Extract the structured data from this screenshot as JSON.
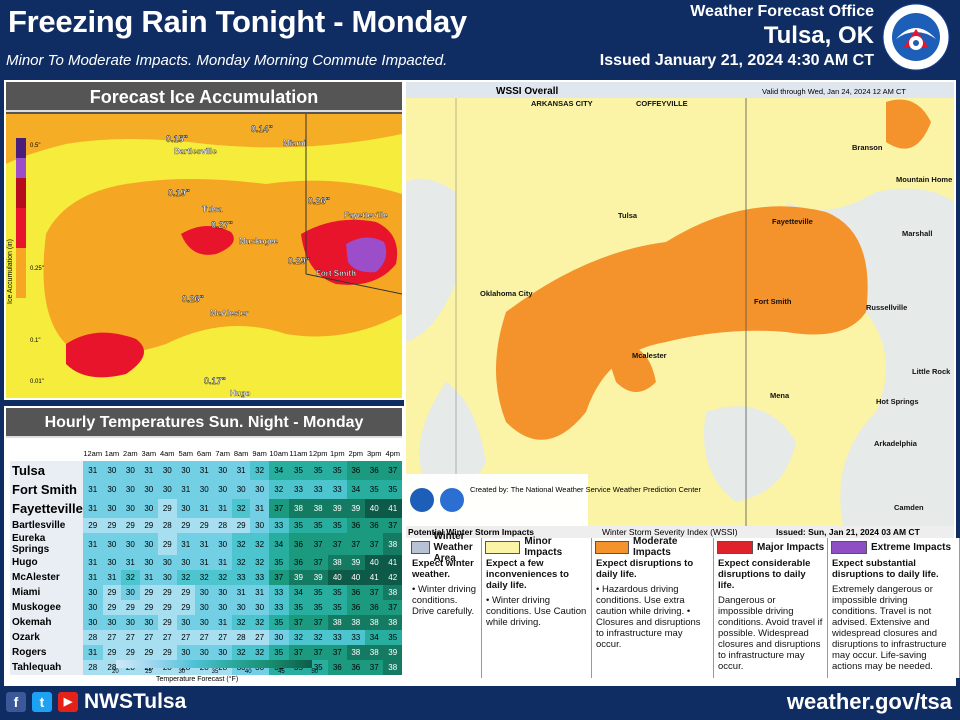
{
  "header": {
    "title": "Freezing Rain Tonight - Monday",
    "subtitle": "Minor To Moderate Impacts. Monday Morning Commute Impacted.",
    "office": "Weather Forecast Office",
    "city": "Tulsa, OK",
    "issued": "Issued January 21, 2024 4:30 AM CT",
    "logo_text": "NATIONAL WEATHER SERVICE"
  },
  "ice_map": {
    "title": "Forecast Ice Accumulation",
    "scale_label": "Ice Accumulation (in)",
    "scale_ticks": [
      "0.5\"",
      "0.25\"",
      "0.1\"",
      "0.01\""
    ],
    "cities": [
      "Bartlesville",
      "Miami",
      "Tulsa",
      "Muskogee",
      "Fayetteville",
      "Fort Smith",
      "McAlester",
      "Hugo"
    ],
    "values": [
      "0.15\"",
      "0.14\"",
      "0.19\"",
      "0.27\"",
      "0.26\"",
      "0.29\"",
      "0.26\"",
      "0.17\""
    ],
    "highways": [
      "44",
      "35",
      "40",
      "35"
    ],
    "colors": {
      "yellow": "#f6ec3c",
      "orange": "#f5a623",
      "red": "#e8142c",
      "purple": "#9b4dca"
    }
  },
  "temps": {
    "title": "Hourly Temperatures Sun. Night - Monday",
    "hours": [
      "12am",
      "1am",
      "2am",
      "3am",
      "4am",
      "5am",
      "6am",
      "7am",
      "8am",
      "9am",
      "10am",
      "11am",
      "12pm",
      "1pm",
      "2pm",
      "3pm",
      "4pm"
    ],
    "rows": [
      {
        "city": "Tulsa",
        "big": true,
        "vals": [
          31,
          30,
          30,
          31,
          30,
          30,
          31,
          30,
          31,
          32,
          34,
          35,
          35,
          35,
          36,
          36,
          37
        ]
      },
      {
        "city": "Fort Smith",
        "big": true,
        "vals": [
          31,
          30,
          30,
          30,
          30,
          31,
          30,
          30,
          30,
          30,
          32,
          33,
          33,
          33,
          34,
          35,
          35
        ]
      },
      {
        "city": "Fayetteville",
        "big": true,
        "vals": [
          31,
          30,
          30,
          30,
          29,
          30,
          31,
          31,
          32,
          31,
          37,
          38,
          38,
          39,
          39,
          40,
          41
        ]
      },
      {
        "city": "Bartlesville",
        "big": false,
        "vals": [
          29,
          29,
          29,
          29,
          28,
          29,
          29,
          28,
          29,
          30,
          33,
          35,
          35,
          35,
          36,
          36,
          37
        ]
      },
      {
        "city": "Eureka Springs",
        "big": false,
        "vals": [
          31,
          30,
          30,
          30,
          29,
          31,
          31,
          30,
          32,
          32,
          34,
          36,
          37,
          37,
          37,
          37,
          38
        ]
      },
      {
        "city": "Hugo",
        "big": false,
        "vals": [
          31,
          30,
          31,
          30,
          30,
          30,
          31,
          31,
          32,
          32,
          35,
          36,
          37,
          38,
          39,
          40,
          41
        ]
      },
      {
        "city": "McAlester",
        "big": false,
        "vals": [
          31,
          31,
          32,
          31,
          30,
          32,
          32,
          32,
          33,
          33,
          37,
          39,
          39,
          40,
          40,
          41,
          42
        ]
      },
      {
        "city": "Miami",
        "big": false,
        "vals": [
          30,
          29,
          30,
          29,
          29,
          29,
          30,
          30,
          31,
          31,
          33,
          34,
          35,
          35,
          36,
          37,
          38
        ]
      },
      {
        "city": "Muskogee",
        "big": false,
        "vals": [
          30,
          29,
          29,
          29,
          29,
          29,
          30,
          30,
          30,
          30,
          33,
          35,
          35,
          35,
          36,
          36,
          37
        ]
      },
      {
        "city": "Okemah",
        "big": false,
        "vals": [
          30,
          30,
          30,
          30,
          29,
          30,
          30,
          31,
          32,
          32,
          35,
          37,
          37,
          38,
          38,
          38,
          38
        ]
      },
      {
        "city": "Ozark",
        "big": false,
        "vals": [
          28,
          27,
          27,
          27,
          27,
          27,
          27,
          27,
          28,
          27,
          30,
          32,
          32,
          33,
          33,
          34,
          35
        ]
      },
      {
        "city": "Rogers",
        "big": false,
        "vals": [
          31,
          29,
          29,
          29,
          29,
          30,
          30,
          30,
          32,
          32,
          35,
          37,
          37,
          37,
          38,
          38,
          39
        ]
      },
      {
        "city": "Tahlequah",
        "big": false,
        "vals": [
          28,
          28,
          28,
          28,
          28,
          28,
          28,
          28,
          30,
          30,
          34,
          35,
          35,
          36,
          36,
          37,
          38
        ]
      }
    ],
    "scale_ticks": [
      "20",
      "25",
      "30",
      "35",
      "40",
      "45",
      "50"
    ],
    "scale_label": "Temperature Forecast (°F)"
  },
  "wssi": {
    "title": "WSSI Overall",
    "valid": "Valid through Wed, Jan 24, 2024 12 AM CT",
    "cities": [
      "ARKANSAS CITY",
      "COFFEYVILLE",
      "Branson",
      "Mountain Home",
      "Tulsa",
      "Fayetteville",
      "Marshall",
      "Oklahoma City",
      "Fort Smith",
      "Russellville",
      "Mcalester",
      "Little Rock",
      "Mena",
      "Hot Springs",
      "Arkadelphia",
      "Camden"
    ],
    "highways": [
      "44",
      "35",
      "40",
      "30"
    ],
    "created": "Created by: The National Weather Service Weather Prediction Center",
    "footer_left": "Potential Winter Storm Impacts",
    "footer_mid": "Winter Storm Severity Index (WSSI)",
    "footer_right": "Issued: Sun, Jan 21, 2024 03 AM CT",
    "legend": [
      {
        "title": "Winter Weather Area",
        "color": "#b7c3d4",
        "text1": "Expect winter weather.",
        "text2": "• Winter driving conditions. Drive carefully."
      },
      {
        "title": "Minor Impacts",
        "color": "#fbf4a6",
        "text1": "Expect a few inconveniences to daily life.",
        "text2": "• Winter driving conditions. Use Caution while driving."
      },
      {
        "title": "Moderate Impacts",
        "color": "#f4922c",
        "text1": "Expect disruptions to daily life.",
        "text2": "• Hazardous driving conditions. Use extra caution while driving. • Closures and disruptions to infrastructure may occur."
      },
      {
        "title": "Major Impacts",
        "color": "#e0232b",
        "text1": "Expect considerable disruptions to daily life.",
        "text2": "Dangerous or impossible driving conditions. Avoid travel if possible. Widespread closures and disruptions to infrastructure may occur."
      },
      {
        "title": "Extreme Impacts",
        "color": "#8e4fc4",
        "text1": "Expect substantial disruptions to daily life.",
        "text2": "Extremely dangerous or impossible driving conditions. Travel is not advised. Extensive and widespread closures and disruptions to infrastructure may occur. Life-saving actions may be needed."
      }
    ]
  },
  "footer": {
    "handle": "NWSTulsa",
    "site": "weather.gov/tsa",
    "fb": "f",
    "tw": "t",
    "yt": "▶"
  }
}
